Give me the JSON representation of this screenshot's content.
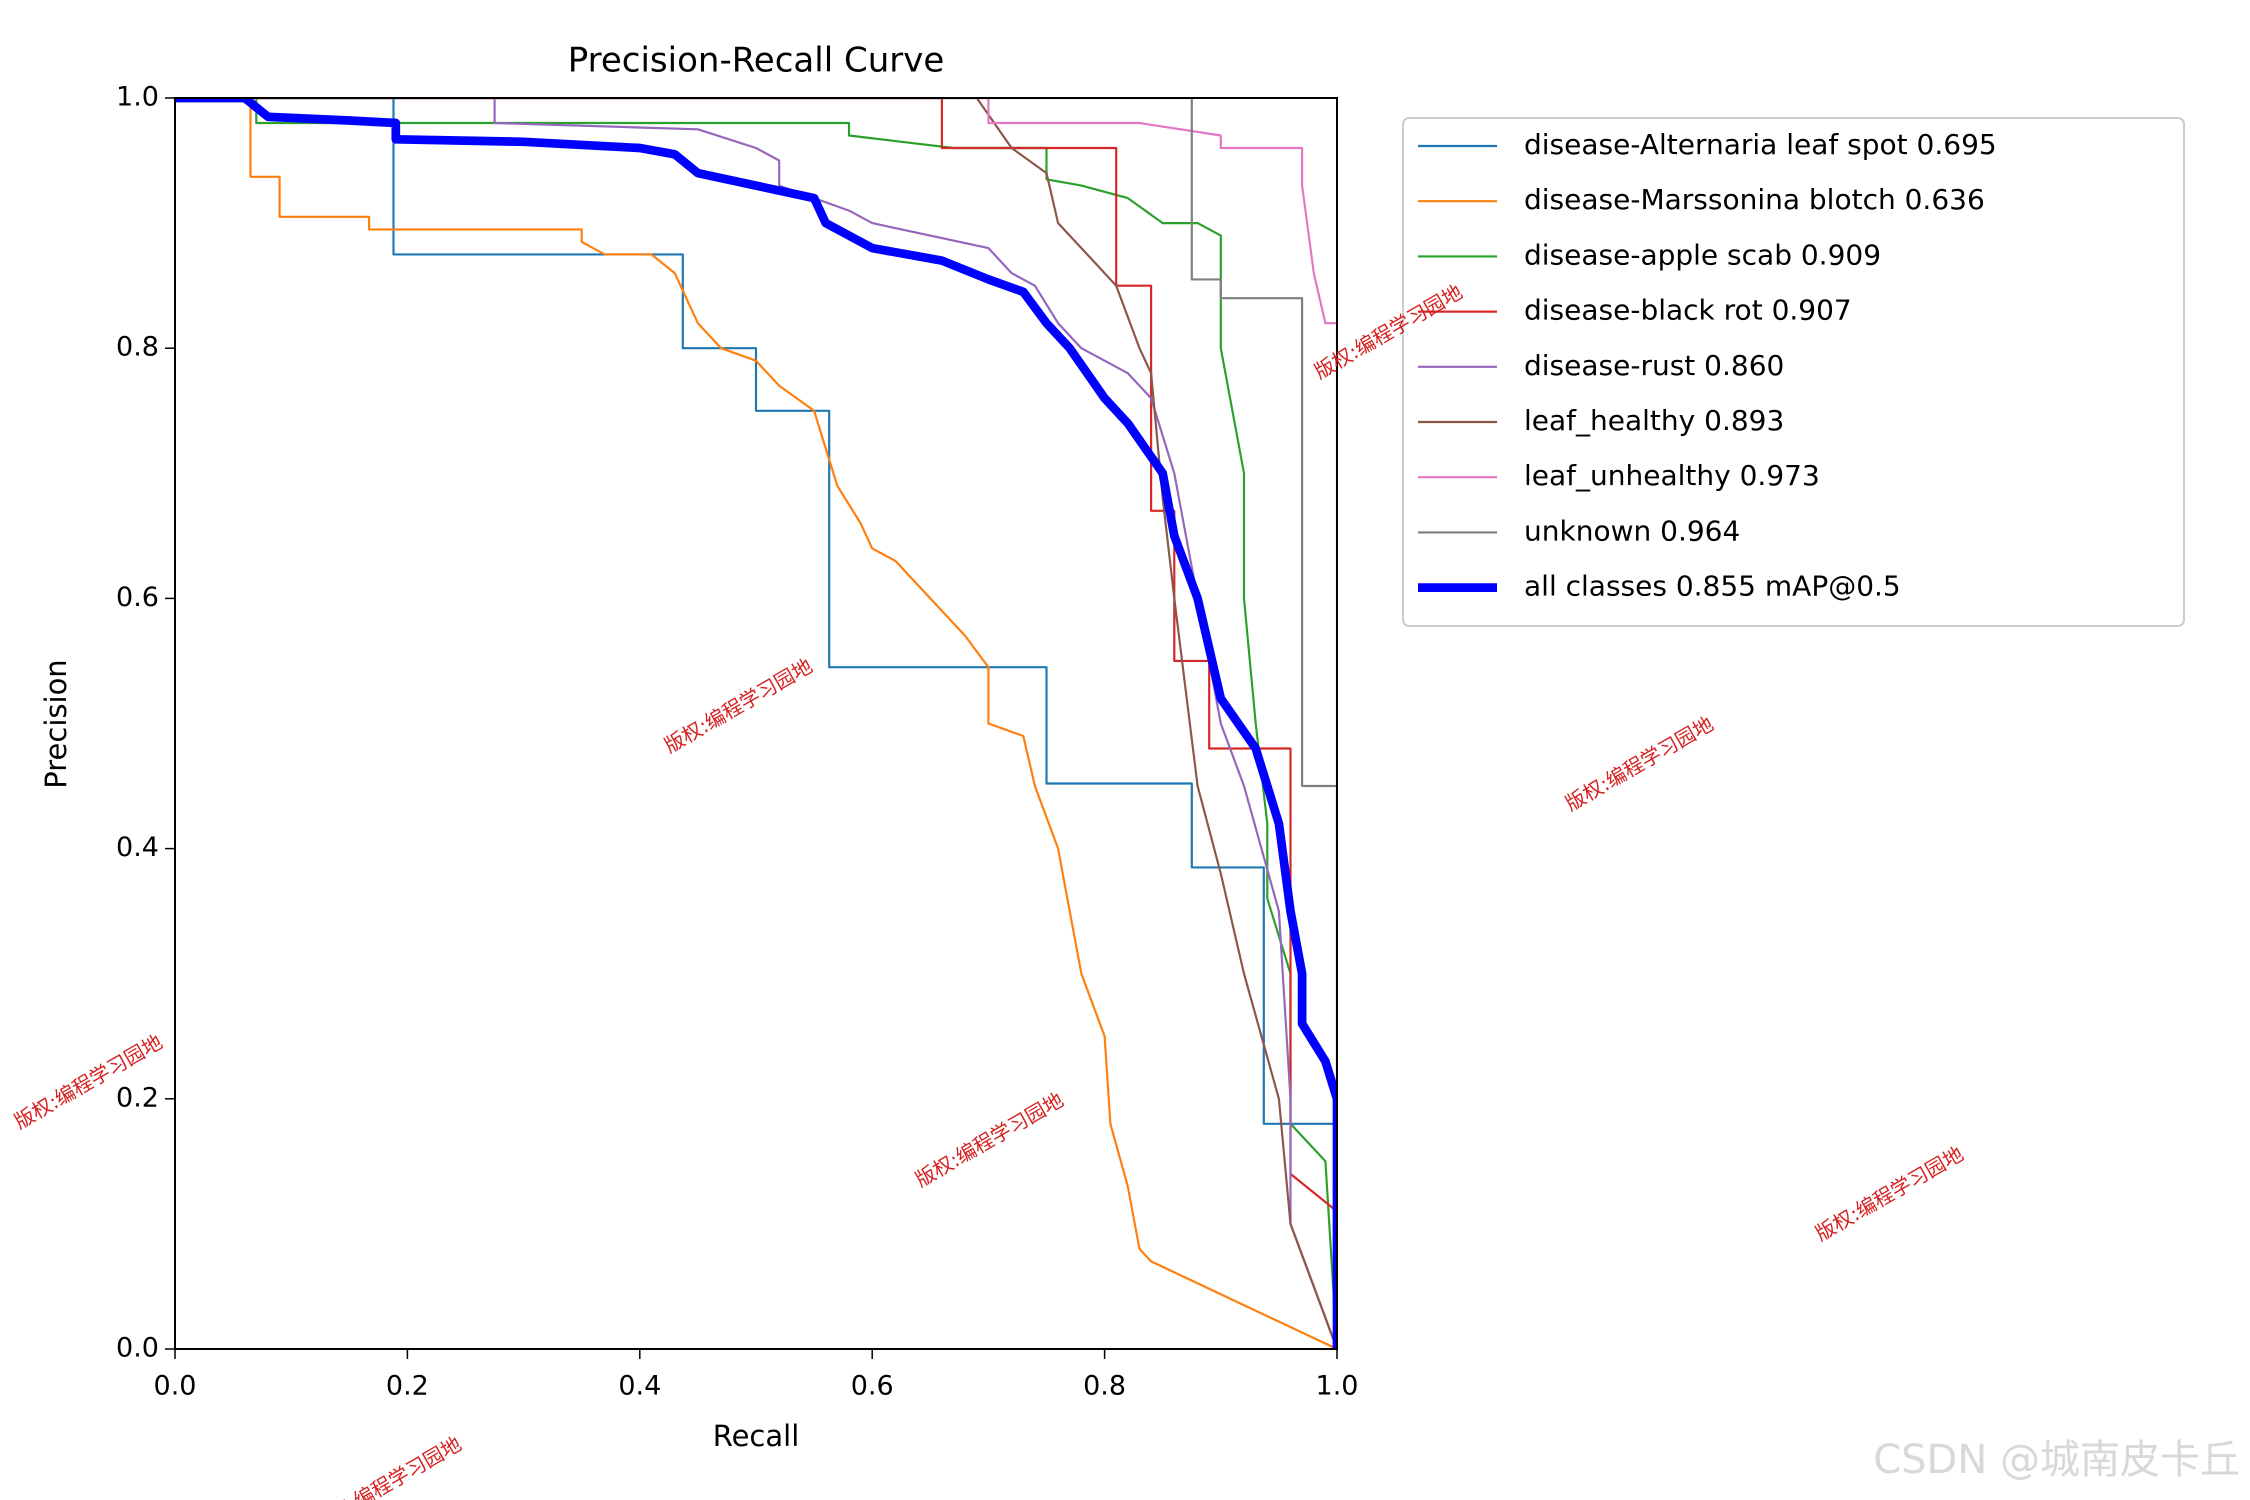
{
  "chart_data": {
    "type": "line",
    "title": "Precision-Recall Curve",
    "x_label": "Recall",
    "y_label": "Precision",
    "xlim": [
      0,
      1
    ],
    "ylim": [
      0,
      1
    ],
    "xticks": [
      {
        "value": 0,
        "label": "0.0"
      },
      0.2,
      0.4,
      0.6,
      0.8,
      {
        "value": 1,
        "label": "1.0"
      }
    ],
    "yticks": [
      {
        "value": 0,
        "label": "0.0"
      },
      0.2,
      0.4,
      0.6,
      0.8,
      {
        "value": 1,
        "label": "1.0"
      }
    ],
    "legend": "outside-upper-right",
    "series": [
      {
        "name": "disease-Alternaria leaf spot 0.695",
        "color": "#1f77b4",
        "width": 1.5,
        "x": [
          0,
          0.188,
          0.188,
          0.437,
          0.437,
          0.5,
          0.5,
          0.563,
          0.563,
          0.75,
          0.75,
          0.875,
          0.875,
          0.937,
          0.937,
          1,
          1
        ],
        "values": [
          1,
          1,
          0.875,
          0.875,
          0.8,
          0.8,
          0.75,
          0.75,
          0.545,
          0.545,
          0.452,
          0.452,
          0.385,
          0.385,
          0.18,
          0.18,
          0
        ]
      },
      {
        "name": "disease-Marssonina blotch 0.636",
        "color": "#ff7f0e",
        "width": 1.5,
        "x": [
          0,
          0.065,
          0.065,
          0.09,
          0.09,
          0.167,
          0.167,
          0.35,
          0.35,
          0.37,
          0.41,
          0.43,
          0.44,
          0.45,
          0.47,
          0.5,
          0.52,
          0.55,
          0.56,
          0.57,
          0.59,
          0.6,
          0.62,
          0.66,
          0.68,
          0.7,
          0.7,
          0.73,
          0.74,
          0.76,
          0.77,
          0.78,
          0.8,
          0.805,
          0.82,
          0.83,
          0.84,
          1
        ],
        "values": [
          1,
          1,
          0.937,
          0.937,
          0.905,
          0.905,
          0.895,
          0.895,
          0.885,
          0.875,
          0.875,
          0.86,
          0.84,
          0.82,
          0.8,
          0.79,
          0.77,
          0.75,
          0.72,
          0.69,
          0.66,
          0.64,
          0.63,
          0.59,
          0.57,
          0.545,
          0.5,
          0.49,
          0.45,
          0.4,
          0.35,
          0.3,
          0.25,
          0.18,
          0.13,
          0.08,
          0.07,
          0
        ]
      },
      {
        "name": "disease-apple scab 0.909",
        "color": "#2ca02c",
        "width": 1.5,
        "x": [
          0,
          0.07,
          0.07,
          0.58,
          0.58,
          0.67,
          0.75,
          0.75,
          0.78,
          0.82,
          0.85,
          0.88,
          0.9,
          0.9,
          0.92,
          0.92,
          0.93,
          0.94,
          0.94,
          0.96,
          0.96,
          0.98,
          0.99,
          1
        ],
        "values": [
          1,
          1,
          0.98,
          0.98,
          0.97,
          0.96,
          0.96,
          0.935,
          0.93,
          0.92,
          0.9,
          0.9,
          0.89,
          0.8,
          0.7,
          0.6,
          0.5,
          0.42,
          0.36,
          0.3,
          0.18,
          0.16,
          0.15,
          0
        ]
      },
      {
        "name": "disease-black rot 0.907",
        "color": "#d62728",
        "width": 1.5,
        "x": [
          0,
          0.66,
          0.66,
          0.81,
          0.81,
          0.84,
          0.84,
          0.86,
          0.86,
          0.89,
          0.89,
          0.96,
          0.96,
          1,
          1
        ],
        "values": [
          1,
          1,
          0.96,
          0.96,
          0.85,
          0.85,
          0.67,
          0.67,
          0.55,
          0.55,
          0.48,
          0.48,
          0.14,
          0.11,
          0
        ]
      },
      {
        "name": "disease-rust 0.860",
        "color": "#9467bd",
        "width": 1.5,
        "x": [
          0,
          0.275,
          0.275,
          0.45,
          0.5,
          0.52,
          0.52,
          0.58,
          0.6,
          0.7,
          0.72,
          0.74,
          0.76,
          0.78,
          0.82,
          0.84,
          0.86,
          0.88,
          0.9,
          0.92,
          0.95,
          0.96,
          0.96,
          1
        ],
        "values": [
          1,
          1,
          0.98,
          0.975,
          0.96,
          0.95,
          0.93,
          0.91,
          0.9,
          0.88,
          0.86,
          0.85,
          0.82,
          0.8,
          0.78,
          0.76,
          0.7,
          0.6,
          0.5,
          0.45,
          0.35,
          0.2,
          0.1,
          0
        ]
      },
      {
        "name": "leaf_healthy 0.893",
        "color": "#8c564b",
        "width": 1.5,
        "x": [
          0,
          0.69,
          0.72,
          0.75,
          0.76,
          0.79,
          0.81,
          0.83,
          0.84,
          0.85,
          0.86,
          0.88,
          0.9,
          0.92,
          0.95,
          0.96,
          1
        ],
        "values": [
          1,
          1,
          0.96,
          0.94,
          0.9,
          0.87,
          0.85,
          0.8,
          0.78,
          0.68,
          0.6,
          0.45,
          0.38,
          0.3,
          0.2,
          0.1,
          0
        ]
      },
      {
        "name": "leaf_unhealthy 0.973",
        "color": "#e377c2",
        "width": 1.5,
        "x": [
          0,
          0.7,
          0.7,
          0.83,
          0.9,
          0.9,
          0.97,
          0.97,
          0.98,
          0.99,
          1,
          1
        ],
        "values": [
          1,
          1,
          0.98,
          0.98,
          0.97,
          0.96,
          0.96,
          0.93,
          0.86,
          0.82,
          0.82,
          0
        ]
      },
      {
        "name": "unknown 0.964",
        "color": "#7f7f7f",
        "width": 1.5,
        "x": [
          0,
          0.875,
          0.875,
          0.9,
          0.9,
          0.97,
          0.97,
          1,
          1
        ],
        "values": [
          1,
          1,
          0.855,
          0.855,
          0.84,
          0.84,
          0.45,
          0.45,
          0
        ]
      },
      {
        "name": "all classes 0.855 mAP@0.5",
        "color": "#0000ff",
        "width": 6,
        "x": [
          0,
          0.06,
          0.08,
          0.15,
          0.19,
          0.19,
          0.3,
          0.4,
          0.43,
          0.45,
          0.5,
          0.55,
          0.56,
          0.6,
          0.66,
          0.7,
          0.73,
          0.75,
          0.77,
          0.8,
          0.82,
          0.85,
          0.86,
          0.88,
          0.9,
          0.93,
          0.95,
          0.96,
          0.97,
          0.97,
          0.99,
          1,
          1
        ],
        "values": [
          1,
          1,
          0.985,
          0.982,
          0.98,
          0.967,
          0.965,
          0.96,
          0.955,
          0.94,
          0.93,
          0.92,
          0.9,
          0.88,
          0.87,
          0.855,
          0.845,
          0.82,
          0.8,
          0.76,
          0.74,
          0.7,
          0.65,
          0.6,
          0.52,
          0.48,
          0.42,
          0.35,
          0.3,
          0.26,
          0.23,
          0.2,
          0
        ]
      }
    ],
    "watermarks": [
      "版权:编程学习园地",
      "版权:编程学习园地",
      "版权:编程学习园地",
      "版权:编程学习园地",
      "版权:编程学习园地",
      "版权:编程学习园地",
      "版权:编程学习园地"
    ],
    "credit": "CSDN @城南皮卡丘"
  }
}
